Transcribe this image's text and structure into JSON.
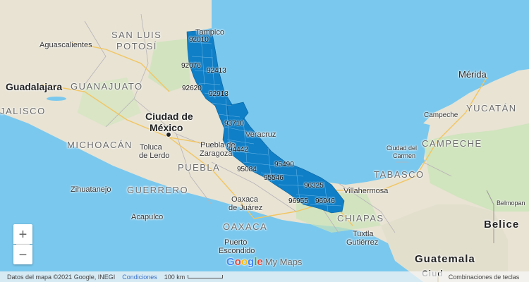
{
  "map": {
    "colors": {
      "water": "#7ac8ee",
      "land": "#e9e4d6",
      "forest": "#bfe0b0",
      "region": "#0f7fc7"
    },
    "states": [
      "SAN LUIS",
      "POTOSÍ",
      "GUANAJUATO",
      "JALISCO",
      "MICHOACÁN",
      "PUEBLA",
      "GUERRERO",
      "OAXACA",
      "TABASCO",
      "CHIAPAS",
      "CAMPECHE",
      "YUCATÁN"
    ],
    "cities": [
      "Aguascalientes",
      "Guadalajara",
      "Ciudad de",
      "México",
      "Toluca",
      "de Lerdo",
      "Puebla de",
      "Zaragoza",
      "Zihuatanejo",
      "Acapulco",
      "Puerto",
      "Escondido",
      "Oaxaca",
      "de Juárez",
      "Tampico",
      "Veracruz",
      "Villahermosa",
      "Tuxtla",
      "Gutiérrez",
      "Ciudad del",
      "Carmen",
      "Campeche",
      "Mérida",
      "Belmopan"
    ],
    "countries": [
      "Belice",
      "Guatemala",
      "Ciud"
    ],
    "zip_codes": [
      "92010",
      "92076",
      "92413",
      "92620",
      "92913",
      "93710",
      "94442",
      "95084",
      "95490",
      "95546",
      "96325",
      "96955",
      "96946"
    ]
  },
  "controls": {
    "zoom_in": "+",
    "zoom_out": "−"
  },
  "footer": {
    "attribution": "Datos del mapa ©2021 Google, INEGI",
    "terms": "Condiciones",
    "scale": "100 km",
    "shortcuts": "Combinaciones de teclas"
  },
  "logo": {
    "brand": "Google",
    "product": "My Maps"
  }
}
